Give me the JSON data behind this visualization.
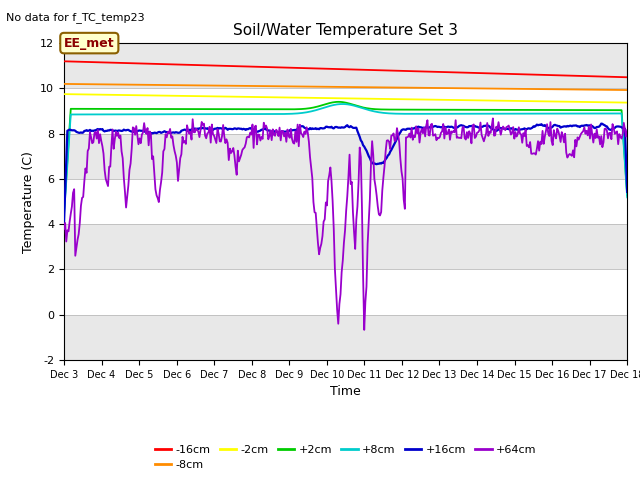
{
  "title": "Soil/Water Temperature Set 3",
  "subtitle": "No data for f_TC_temp23",
  "xlabel": "Time",
  "ylabel": "Temperature (C)",
  "ylim": [
    -2,
    12
  ],
  "yticks": [
    -2,
    0,
    2,
    4,
    6,
    8,
    10,
    12
  ],
  "annotation": "EE_met",
  "background_color": "#ffffff",
  "plot_bg_light": "#e8e8e8",
  "plot_bg_dark": "#ffffff",
  "series": {
    "-16cm": {
      "color": "#ff0000"
    },
    "-8cm": {
      "color": "#ff8c00"
    },
    "-2cm": {
      "color": "#ffff00"
    },
    "+2cm": {
      "color": "#00cc00"
    },
    "+8cm": {
      "color": "#00cccc"
    },
    "+16cm": {
      "color": "#0000cc"
    },
    "+64cm": {
      "color": "#9900cc"
    }
  },
  "x_start": 3,
  "x_end": 18,
  "xtick_labels": [
    "Dec 3",
    "Dec 4",
    "Dec 5",
    "Dec 6",
    "Dec 7",
    "Dec 8",
    "Dec 9",
    "Dec 10",
    "Dec 11",
    "Dec 12",
    "Dec 13",
    "Dec 14",
    "Dec 15",
    "Dec 16",
    "Dec 17",
    "Dec 18"
  ],
  "xtick_positions": [
    3,
    4,
    5,
    6,
    7,
    8,
    9,
    10,
    11,
    12,
    13,
    14,
    15,
    16,
    17,
    18
  ]
}
